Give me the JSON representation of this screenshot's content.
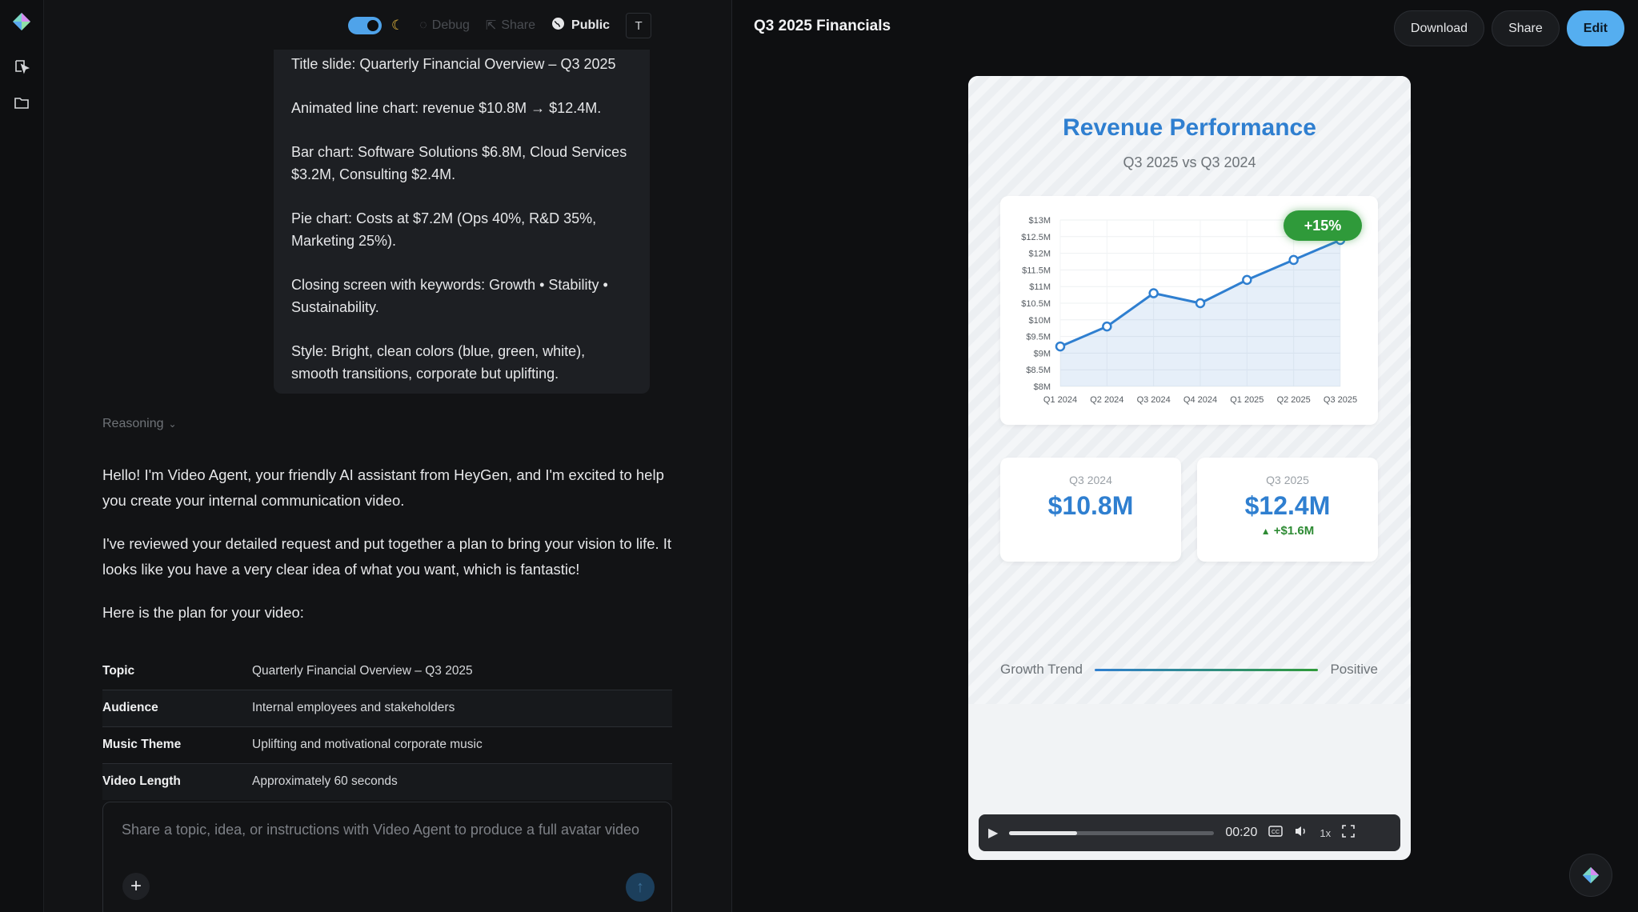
{
  "rail": {
    "logo": "heygen-logo",
    "icons": [
      "video-play-icon",
      "folder-icon"
    ]
  },
  "chat_topbar": {
    "debug_label": "Debug",
    "share_label": "Share",
    "public_label": "Public",
    "avatar_initial": "T"
  },
  "user_message": {
    "paragraphs": [
      "Title slide: Quarterly Financial Overview – Q3 2025",
      "Animated line chart: revenue $10.8M → $12.4M.",
      "Bar chart: Software Solutions $6.8M, Cloud Services $3.2M, Consulting $2.4M.",
      "Pie chart: Costs at $7.2M (Ops 40%, R&D 35%, Marketing 25%).",
      "Closing screen with keywords: Growth • Stability • Sustainability.",
      "Style: Bright, clean colors (blue, green, white), smooth transitions, corporate but uplifting."
    ]
  },
  "reasoning_label": "Reasoning",
  "assistant": {
    "paragraphs": [
      "Hello! I'm Video Agent, your friendly AI assistant from HeyGen, and I'm excited to help you create your internal communication video.",
      "I've reviewed your detailed request and put together a plan to bring your vision to life. It looks like you have a very clear idea of what you want, which is fantastic!",
      "Here is the plan for your video:"
    ]
  },
  "plan": [
    {
      "key": "Topic",
      "value": "Quarterly Financial Overview – Q3 2025"
    },
    {
      "key": "Audience",
      "value": "Internal employees and stakeholders"
    },
    {
      "key": "Music Theme",
      "value": "Uplifting and motivational corporate music"
    },
    {
      "key": "Video Length",
      "value": "Approximately 60 seconds"
    }
  ],
  "composer": {
    "placeholder": "Share a topic, idea, or instructions with Video Agent to produce a full avatar video"
  },
  "preview": {
    "title": "Q3 2025 Financials",
    "download_label": "Download",
    "share_label": "Share",
    "edit_label": "Edit"
  },
  "slide": {
    "title": "Revenue Performance",
    "subtitle": "Q3 2025 vs Q3 2024",
    "badge": "+15%",
    "stat_left": {
      "label": "Q3 2024",
      "value": "$10.8M"
    },
    "stat_right": {
      "label": "Q3 2025",
      "value": "$12.4M",
      "delta": "+$1.6M"
    },
    "trend_label": "Growth Trend",
    "trend_value": "Positive",
    "colors": {
      "blue": "#2f7fd0",
      "green": "#2f9a3a"
    }
  },
  "chart_data": {
    "type": "line",
    "title": "",
    "x": [
      "Q1 2024",
      "Q2 2024",
      "Q3 2024",
      "Q4 2024",
      "Q1 2025",
      "Q2 2025",
      "Q3 2025"
    ],
    "series": [
      {
        "name": "",
        "values": [
          9.2,
          9.8,
          10.8,
          10.5,
          11.2,
          11.8,
          12.4
        ]
      }
    ],
    "y_ticks": [
      "$13M",
      "$12.5M",
      "$12M",
      "$11.5M",
      "$11M",
      "$10.5M",
      "$10M",
      "$9.5M",
      "$9M",
      "$8.5M",
      "$8M"
    ],
    "ylim": [
      8,
      13
    ],
    "grid": true,
    "xlabel": "",
    "ylabel": ""
  },
  "player": {
    "time": "00:20",
    "speed": "1x",
    "progress": 0.33
  }
}
